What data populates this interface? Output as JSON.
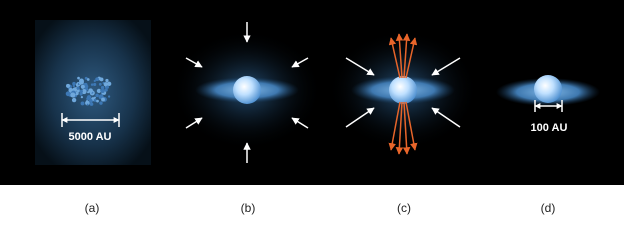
{
  "panels": [
    {
      "label": "(a)",
      "scale": "5000 AU"
    },
    {
      "label": "(b)"
    },
    {
      "label": "(c)"
    },
    {
      "label": "(d)",
      "scale": "100 AU"
    }
  ]
}
